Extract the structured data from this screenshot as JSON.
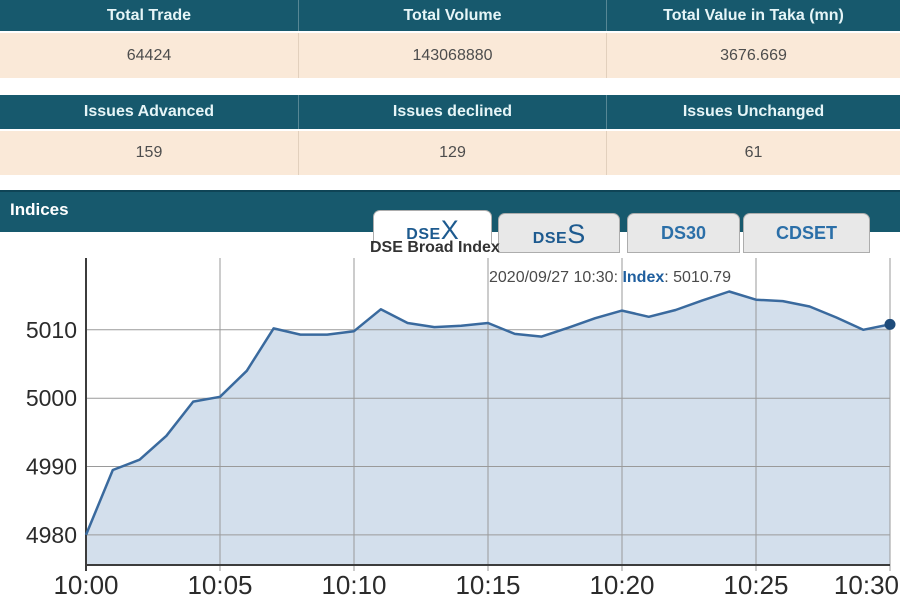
{
  "summary_table_1": {
    "headers": [
      "Total Trade",
      "Total Volume",
      "Total Value in Taka (mn)"
    ],
    "values": [
      "64424",
      "143068880",
      "3676.669"
    ]
  },
  "summary_table_2": {
    "headers": [
      "Issues Advanced",
      "Issues declined",
      "Issues Unchanged"
    ],
    "values": [
      "159",
      "129",
      "61"
    ]
  },
  "indices_section": {
    "title": "Indices",
    "tabs": [
      {
        "name": "DSEX",
        "small": "DSE",
        "big": "X",
        "active": true
      },
      {
        "name": "DSES",
        "small": "DSE",
        "big": "S",
        "active": false
      },
      {
        "name": "DS30",
        "label": "DS30",
        "active": false
      },
      {
        "name": "CDSET",
        "label": "CDSET",
        "active": false
      }
    ]
  },
  "chart_data": {
    "type": "area",
    "title": "DSE Broad Index",
    "tooltip": {
      "datetime": "2020/09/27 10:30:",
      "label": "Index",
      "value": "5010.79"
    },
    "x": [
      "10:00",
      "10:01",
      "10:02",
      "10:03",
      "10:04",
      "10:05",
      "10:06",
      "10:07",
      "10:08",
      "10:09",
      "10:10",
      "10:11",
      "10:12",
      "10:13",
      "10:14",
      "10:15",
      "10:16",
      "10:17",
      "10:18",
      "10:19",
      "10:20",
      "10:21",
      "10:22",
      "10:23",
      "10:24",
      "10:25",
      "10:26",
      "10:27",
      "10:28",
      "10:29",
      "10:30"
    ],
    "values": [
      4980.0,
      4989.5,
      4991.0,
      4994.5,
      4999.5,
      5000.2,
      5004.0,
      5010.2,
      5009.3,
      5009.3,
      5009.8,
      5013.0,
      5011.0,
      5010.4,
      5010.6,
      5011.0,
      5009.4,
      5009.0,
      5010.3,
      5011.7,
      5012.8,
      5011.9,
      5012.9,
      5014.3,
      5015.6,
      5014.4,
      5014.2,
      5013.4,
      5011.8,
      5010.0,
      5010.79
    ],
    "x_ticks": [
      "10:00",
      "10:05",
      "10:10",
      "10:15",
      "10:20",
      "10:25",
      "10:30"
    ],
    "y_ticks": [
      4980,
      4990,
      5000,
      5010
    ],
    "y_range": [
      4975.6,
      5020.5
    ],
    "grid": true,
    "legend": false,
    "colors": {
      "line": "#3A6A9E",
      "fill": "#D3DFEC",
      "dot": "#1E4B7A",
      "grid": "#9A9A9A",
      "axis": "#3C3C3C",
      "label": "#2B2B2B",
      "tooltip_text": "#4A4A4A",
      "tooltip_label": "#1E5E9E"
    }
  }
}
